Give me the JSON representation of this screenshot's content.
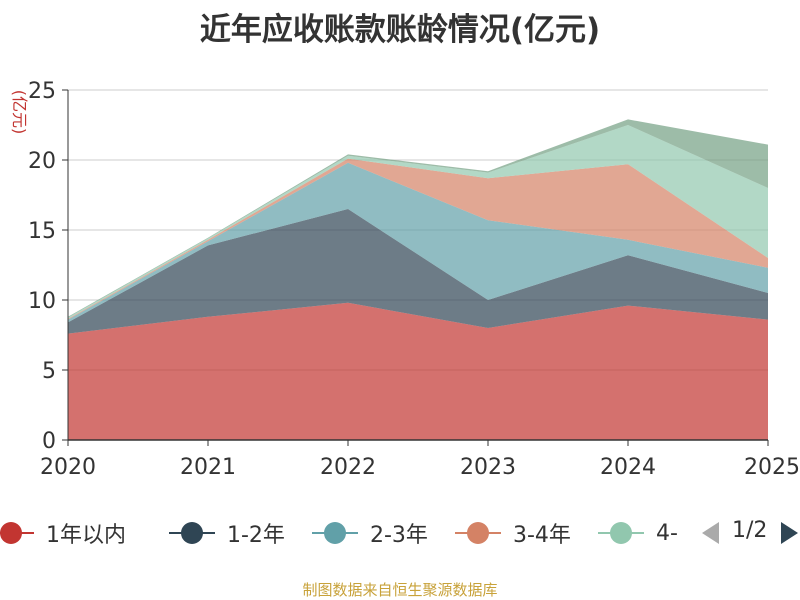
{
  "chart_data": {
    "type": "area",
    "title": "近年应收账款账龄情况(亿元)",
    "ylabel": "(亿元)",
    "x": [
      "2020",
      "2021",
      "2022",
      "2023",
      "2024",
      "2025"
    ],
    "ylim": [
      0,
      25
    ],
    "yticks": [
      0,
      5,
      10,
      15,
      20,
      25
    ],
    "stacked": true,
    "grid": true,
    "series": [
      {
        "name": "1年以内",
        "color": "#c23531",
        "values": [
          7.6,
          8.8,
          9.8,
          8.0,
          9.6,
          8.6
        ]
      },
      {
        "name": "1-2年",
        "color": "#2f4554",
        "values": [
          0.8,
          5.1,
          6.7,
          2.0,
          3.6,
          1.9
        ]
      },
      {
        "name": "2-3年",
        "color": "#61a0a8",
        "values": [
          0.2,
          0.3,
          3.3,
          5.7,
          1.1,
          1.8
        ]
      },
      {
        "name": "3-4年",
        "color": "#d48265",
        "values": [
          0.05,
          0.1,
          0.3,
          3.0,
          5.4,
          0.7
        ]
      },
      {
        "name": "4-",
        "color": "#91c7ae",
        "values": [
          0.1,
          0.1,
          0.2,
          0.4,
          2.8,
          5.0
        ]
      },
      {
        "name": "",
        "color": "#749f83",
        "values": [
          0.05,
          0.05,
          0.1,
          0.1,
          0.4,
          3.1
        ]
      }
    ],
    "legend_position": "bottom"
  },
  "legend": {
    "pager": "1/2"
  },
  "source": "制图数据来自恒生聚源数据库"
}
